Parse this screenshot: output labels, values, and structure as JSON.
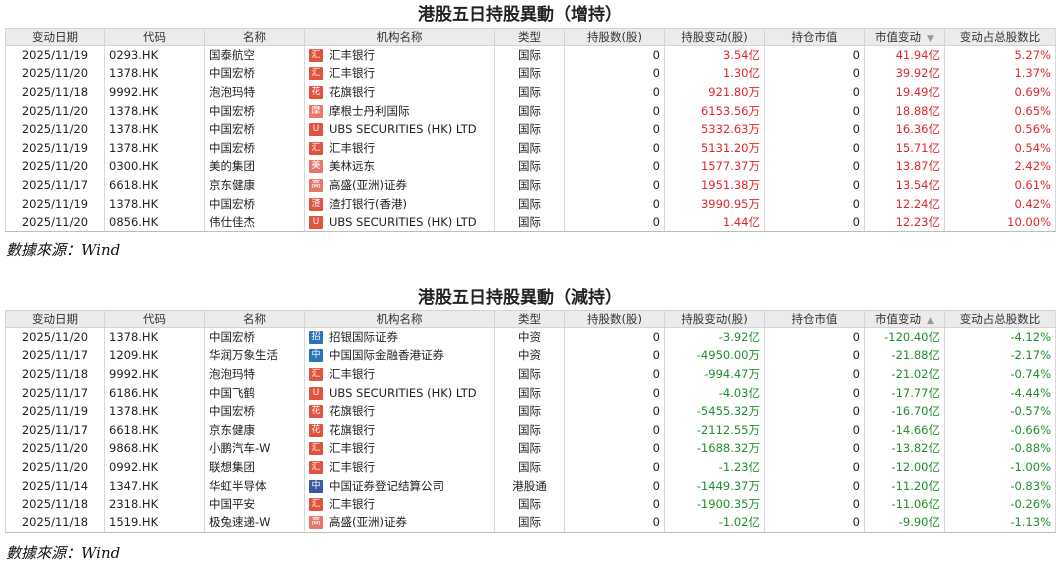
{
  "colors": {
    "positive": "#e0262a",
    "negative": "#1f8f2a",
    "header_bg": "#ebebeb"
  },
  "sections": [
    {
      "title": "港股五日持股異動（增持）",
      "source": "數據來源：Wind",
      "sort_indicator": "▼",
      "headers": [
        "变动日期",
        "代码",
        "名称",
        "机构名称",
        "类型",
        "持股数(股)",
        "持股变动(股)",
        "持仓市值",
        "市值变动",
        "变动占总股数比"
      ],
      "rows": [
        {
          "date": "2025/11/19",
          "code": "0293.HK",
          "name": "国泰航空",
          "tag": "汇",
          "tag_color": "#e2533f",
          "inst": "汇丰银行",
          "type": "国际",
          "shares": "0",
          "change": "3.54亿",
          "mv": "0",
          "mv_change": "41.94亿",
          "ratio": "5.27%"
        },
        {
          "date": "2025/11/20",
          "code": "1378.HK",
          "name": "中国宏桥",
          "tag": "汇",
          "tag_color": "#e2533f",
          "inst": "汇丰银行",
          "type": "国际",
          "shares": "0",
          "change": "1.30亿",
          "mv": "0",
          "mv_change": "39.92亿",
          "ratio": "1.37%"
        },
        {
          "date": "2025/11/18",
          "code": "9992.HK",
          "name": "泡泡玛特",
          "tag": "花",
          "tag_color": "#e2533f",
          "inst": "花旗银行",
          "type": "国际",
          "shares": "0",
          "change": "921.80万",
          "mv": "0",
          "mv_change": "19.49亿",
          "ratio": "0.69%"
        },
        {
          "date": "2025/11/20",
          "code": "1378.HK",
          "name": "中国宏桥",
          "tag": "摩",
          "tag_color": "#e8776a",
          "inst": "摩根士丹利国际",
          "type": "国际",
          "shares": "0",
          "change": "6153.56万",
          "mv": "0",
          "mv_change": "18.88亿",
          "ratio": "0.65%"
        },
        {
          "date": "2025/11/20",
          "code": "1378.HK",
          "name": "中国宏桥",
          "tag": "U",
          "tag_color": "#e2533f",
          "inst": "UBS SECURITIES (HK) LTD",
          "type": "国际",
          "shares": "0",
          "change": "5332.63万",
          "mv": "0",
          "mv_change": "16.36亿",
          "ratio": "0.56%"
        },
        {
          "date": "2025/11/19",
          "code": "1378.HK",
          "name": "中国宏桥",
          "tag": "汇",
          "tag_color": "#e2533f",
          "inst": "汇丰银行",
          "type": "国际",
          "shares": "0",
          "change": "5131.20万",
          "mv": "0",
          "mv_change": "15.71亿",
          "ratio": "0.54%"
        },
        {
          "date": "2025/11/20",
          "code": "0300.HK",
          "name": "美的集团",
          "tag": "美",
          "tag_color": "#e8776a",
          "inst": "美林远东",
          "type": "国际",
          "shares": "0",
          "change": "1577.37万",
          "mv": "0",
          "mv_change": "13.87亿",
          "ratio": "2.42%"
        },
        {
          "date": "2025/11/17",
          "code": "6618.HK",
          "name": "京东健康",
          "tag": "高",
          "tag_color": "#e8776a",
          "inst": "高盛(亚洲)证券",
          "type": "国际",
          "shares": "0",
          "change": "1951.38万",
          "mv": "0",
          "mv_change": "13.54亿",
          "ratio": "0.61%"
        },
        {
          "date": "2025/11/19",
          "code": "1378.HK",
          "name": "中国宏桥",
          "tag": "渣",
          "tag_color": "#e2533f",
          "inst": "渣打银行(香港)",
          "type": "国际",
          "shares": "0",
          "change": "3990.95万",
          "mv": "0",
          "mv_change": "12.24亿",
          "ratio": "0.42%"
        },
        {
          "date": "2025/11/20",
          "code": "0856.HK",
          "name": "伟仕佳杰",
          "tag": "U",
          "tag_color": "#e2533f",
          "inst": "UBS SECURITIES (HK) LTD",
          "type": "国际",
          "shares": "0",
          "change": "1.44亿",
          "mv": "0",
          "mv_change": "12.23亿",
          "ratio": "10.00%"
        }
      ]
    },
    {
      "title": "港股五日持股異動（減持）",
      "source": "數據來源：Wind",
      "sort_indicator": "▲",
      "headers": [
        "变动日期",
        "代码",
        "名称",
        "机构名称",
        "类型",
        "持股数(股)",
        "持股变动(股)",
        "持仓市值",
        "市值变动",
        "变动占总股数比"
      ],
      "rows": [
        {
          "date": "2025/11/20",
          "code": "1378.HK",
          "name": "中国宏桥",
          "tag": "招",
          "tag_color": "#2b74b8",
          "inst": "招银国际证券",
          "type": "中资",
          "shares": "0",
          "change": "-3.92亿",
          "mv": "0",
          "mv_change": "-120.40亿",
          "ratio": "-4.12%"
        },
        {
          "date": "2025/11/17",
          "code": "1209.HK",
          "name": "华润万象生活",
          "tag": "中",
          "tag_color": "#2b74b8",
          "inst": "中国国际金融香港证券",
          "type": "中资",
          "shares": "0",
          "change": "-4950.00万",
          "mv": "0",
          "mv_change": "-21.88亿",
          "ratio": "-2.17%"
        },
        {
          "date": "2025/11/18",
          "code": "9992.HK",
          "name": "泡泡玛特",
          "tag": "汇",
          "tag_color": "#e2533f",
          "inst": "汇丰银行",
          "type": "国际",
          "shares": "0",
          "change": "-994.47万",
          "mv": "0",
          "mv_change": "-21.02亿",
          "ratio": "-0.74%"
        },
        {
          "date": "2025/11/17",
          "code": "6186.HK",
          "name": "中国飞鹤",
          "tag": "U",
          "tag_color": "#e2533f",
          "inst": "UBS SECURITIES (HK) LTD",
          "type": "国际",
          "shares": "0",
          "change": "-4.03亿",
          "mv": "0",
          "mv_change": "-17.77亿",
          "ratio": "-4.44%"
        },
        {
          "date": "2025/11/19",
          "code": "1378.HK",
          "name": "中国宏桥",
          "tag": "花",
          "tag_color": "#e2533f",
          "inst": "花旗银行",
          "type": "国际",
          "shares": "0",
          "change": "-5455.32万",
          "mv": "0",
          "mv_change": "-16.70亿",
          "ratio": "-0.57%"
        },
        {
          "date": "2025/11/17",
          "code": "6618.HK",
          "name": "京东健康",
          "tag": "花",
          "tag_color": "#e2533f",
          "inst": "花旗银行",
          "type": "国际",
          "shares": "0",
          "change": "-2112.55万",
          "mv": "0",
          "mv_change": "-14.66亿",
          "ratio": "-0.66%"
        },
        {
          "date": "2025/11/20",
          "code": "9868.HK",
          "name": "小鹏汽车-W",
          "tag": "汇",
          "tag_color": "#e2533f",
          "inst": "汇丰银行",
          "type": "国际",
          "shares": "0",
          "change": "-1688.32万",
          "mv": "0",
          "mv_change": "-13.82亿",
          "ratio": "-0.88%"
        },
        {
          "date": "2025/11/20",
          "code": "0992.HK",
          "name": "联想集团",
          "tag": "汇",
          "tag_color": "#e2533f",
          "inst": "汇丰银行",
          "type": "国际",
          "shares": "0",
          "change": "-1.23亿",
          "mv": "0",
          "mv_change": "-12.00亿",
          "ratio": "-1.00%"
        },
        {
          "date": "2025/11/14",
          "code": "1347.HK",
          "name": "华虹半导体",
          "tag": "中",
          "tag_color": "#3a5aa0",
          "inst": "中国证券登记结算公司",
          "type": "港股通",
          "shares": "0",
          "change": "-1449.37万",
          "mv": "0",
          "mv_change": "-11.20亿",
          "ratio": "-0.83%"
        },
        {
          "date": "2025/11/18",
          "code": "2318.HK",
          "name": "中国平安",
          "tag": "汇",
          "tag_color": "#e2533f",
          "inst": "汇丰银行",
          "type": "国际",
          "shares": "0",
          "change": "-1900.35万",
          "mv": "0",
          "mv_change": "-11.06亿",
          "ratio": "-0.26%"
        },
        {
          "date": "2025/11/18",
          "code": "1519.HK",
          "name": "极兔速递-W",
          "tag": "高",
          "tag_color": "#e8776a",
          "inst": "高盛(亚洲)证券",
          "type": "国际",
          "shares": "0",
          "change": "-1.02亿",
          "mv": "0",
          "mv_change": "-9.90亿",
          "ratio": "-1.13%"
        }
      ]
    }
  ]
}
